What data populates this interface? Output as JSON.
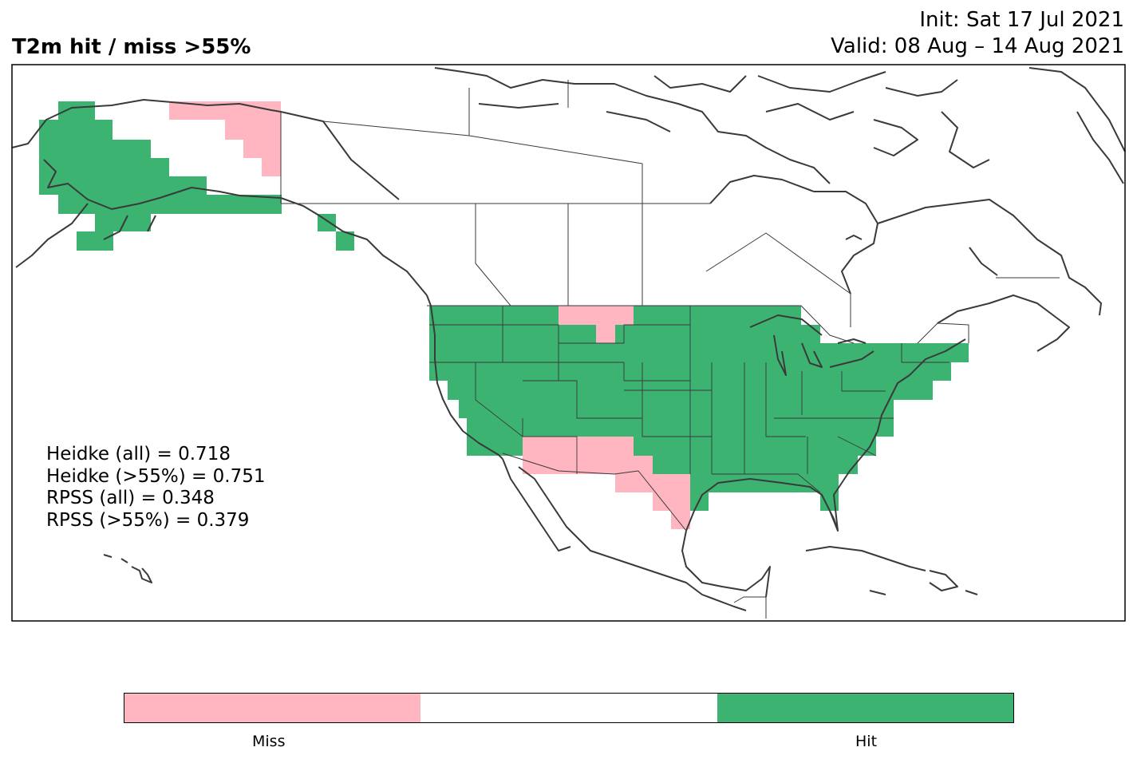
{
  "title": "T2m hit / miss  >55%",
  "init": "Init: Sat 17 Jul 2021",
  "valid": "Valid: 08 Aug – 14 Aug 2021",
  "stats": [
    "Heidke (all) = 0.718",
    "Heidke (>55%) = 0.751",
    "RPSS (all) = 0.348",
    "RPSS (>55%) = 0.379"
  ],
  "legend": {
    "miss_label": "Miss",
    "hit_label": "Hit"
  },
  "colors": {
    "miss": "#ffb6c1",
    "neutral": "#ffffff",
    "hit": "#3cb371",
    "coast": "#3a3a3a"
  }
}
